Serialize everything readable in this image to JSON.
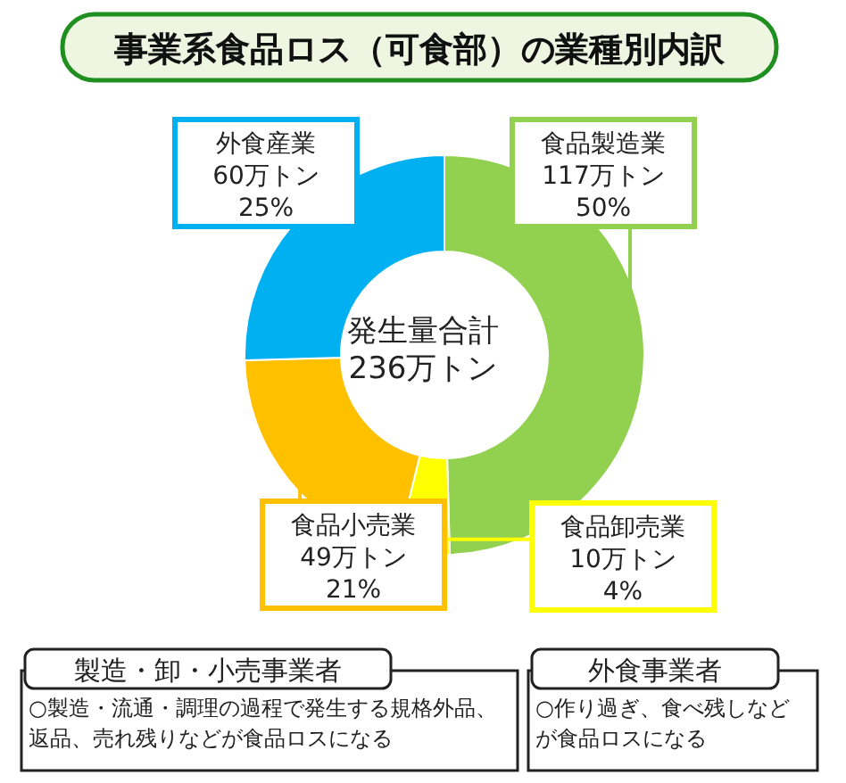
{
  "chart_data": {
    "type": "donut",
    "title": "事業系食品ロス（可食部）の業種別内訳",
    "categories": [
      "食品製造業",
      "食品卸売業",
      "食品小売業",
      "外食産業"
    ],
    "values": [
      117,
      10,
      49,
      60
    ],
    "colors": [
      "#92d050",
      "#ffff00",
      "#ffc000",
      "#00b0f0"
    ],
    "value_labels": [
      "117万トン\n50%",
      "10万トン\n4%",
      "49万トン\n21%",
      "60万トン\n25%"
    ],
    "annotations": [
      "発生量合計\n236万トン",
      "製造・卸・小売事業者",
      "○製造・流通・調理の過程で発生する規格外品、返品、売れ残りなどが食品ロスになる",
      "外食事業者",
      "○作り過ぎ、食べ残しなどが食品ロスになる"
    ]
  }
}
